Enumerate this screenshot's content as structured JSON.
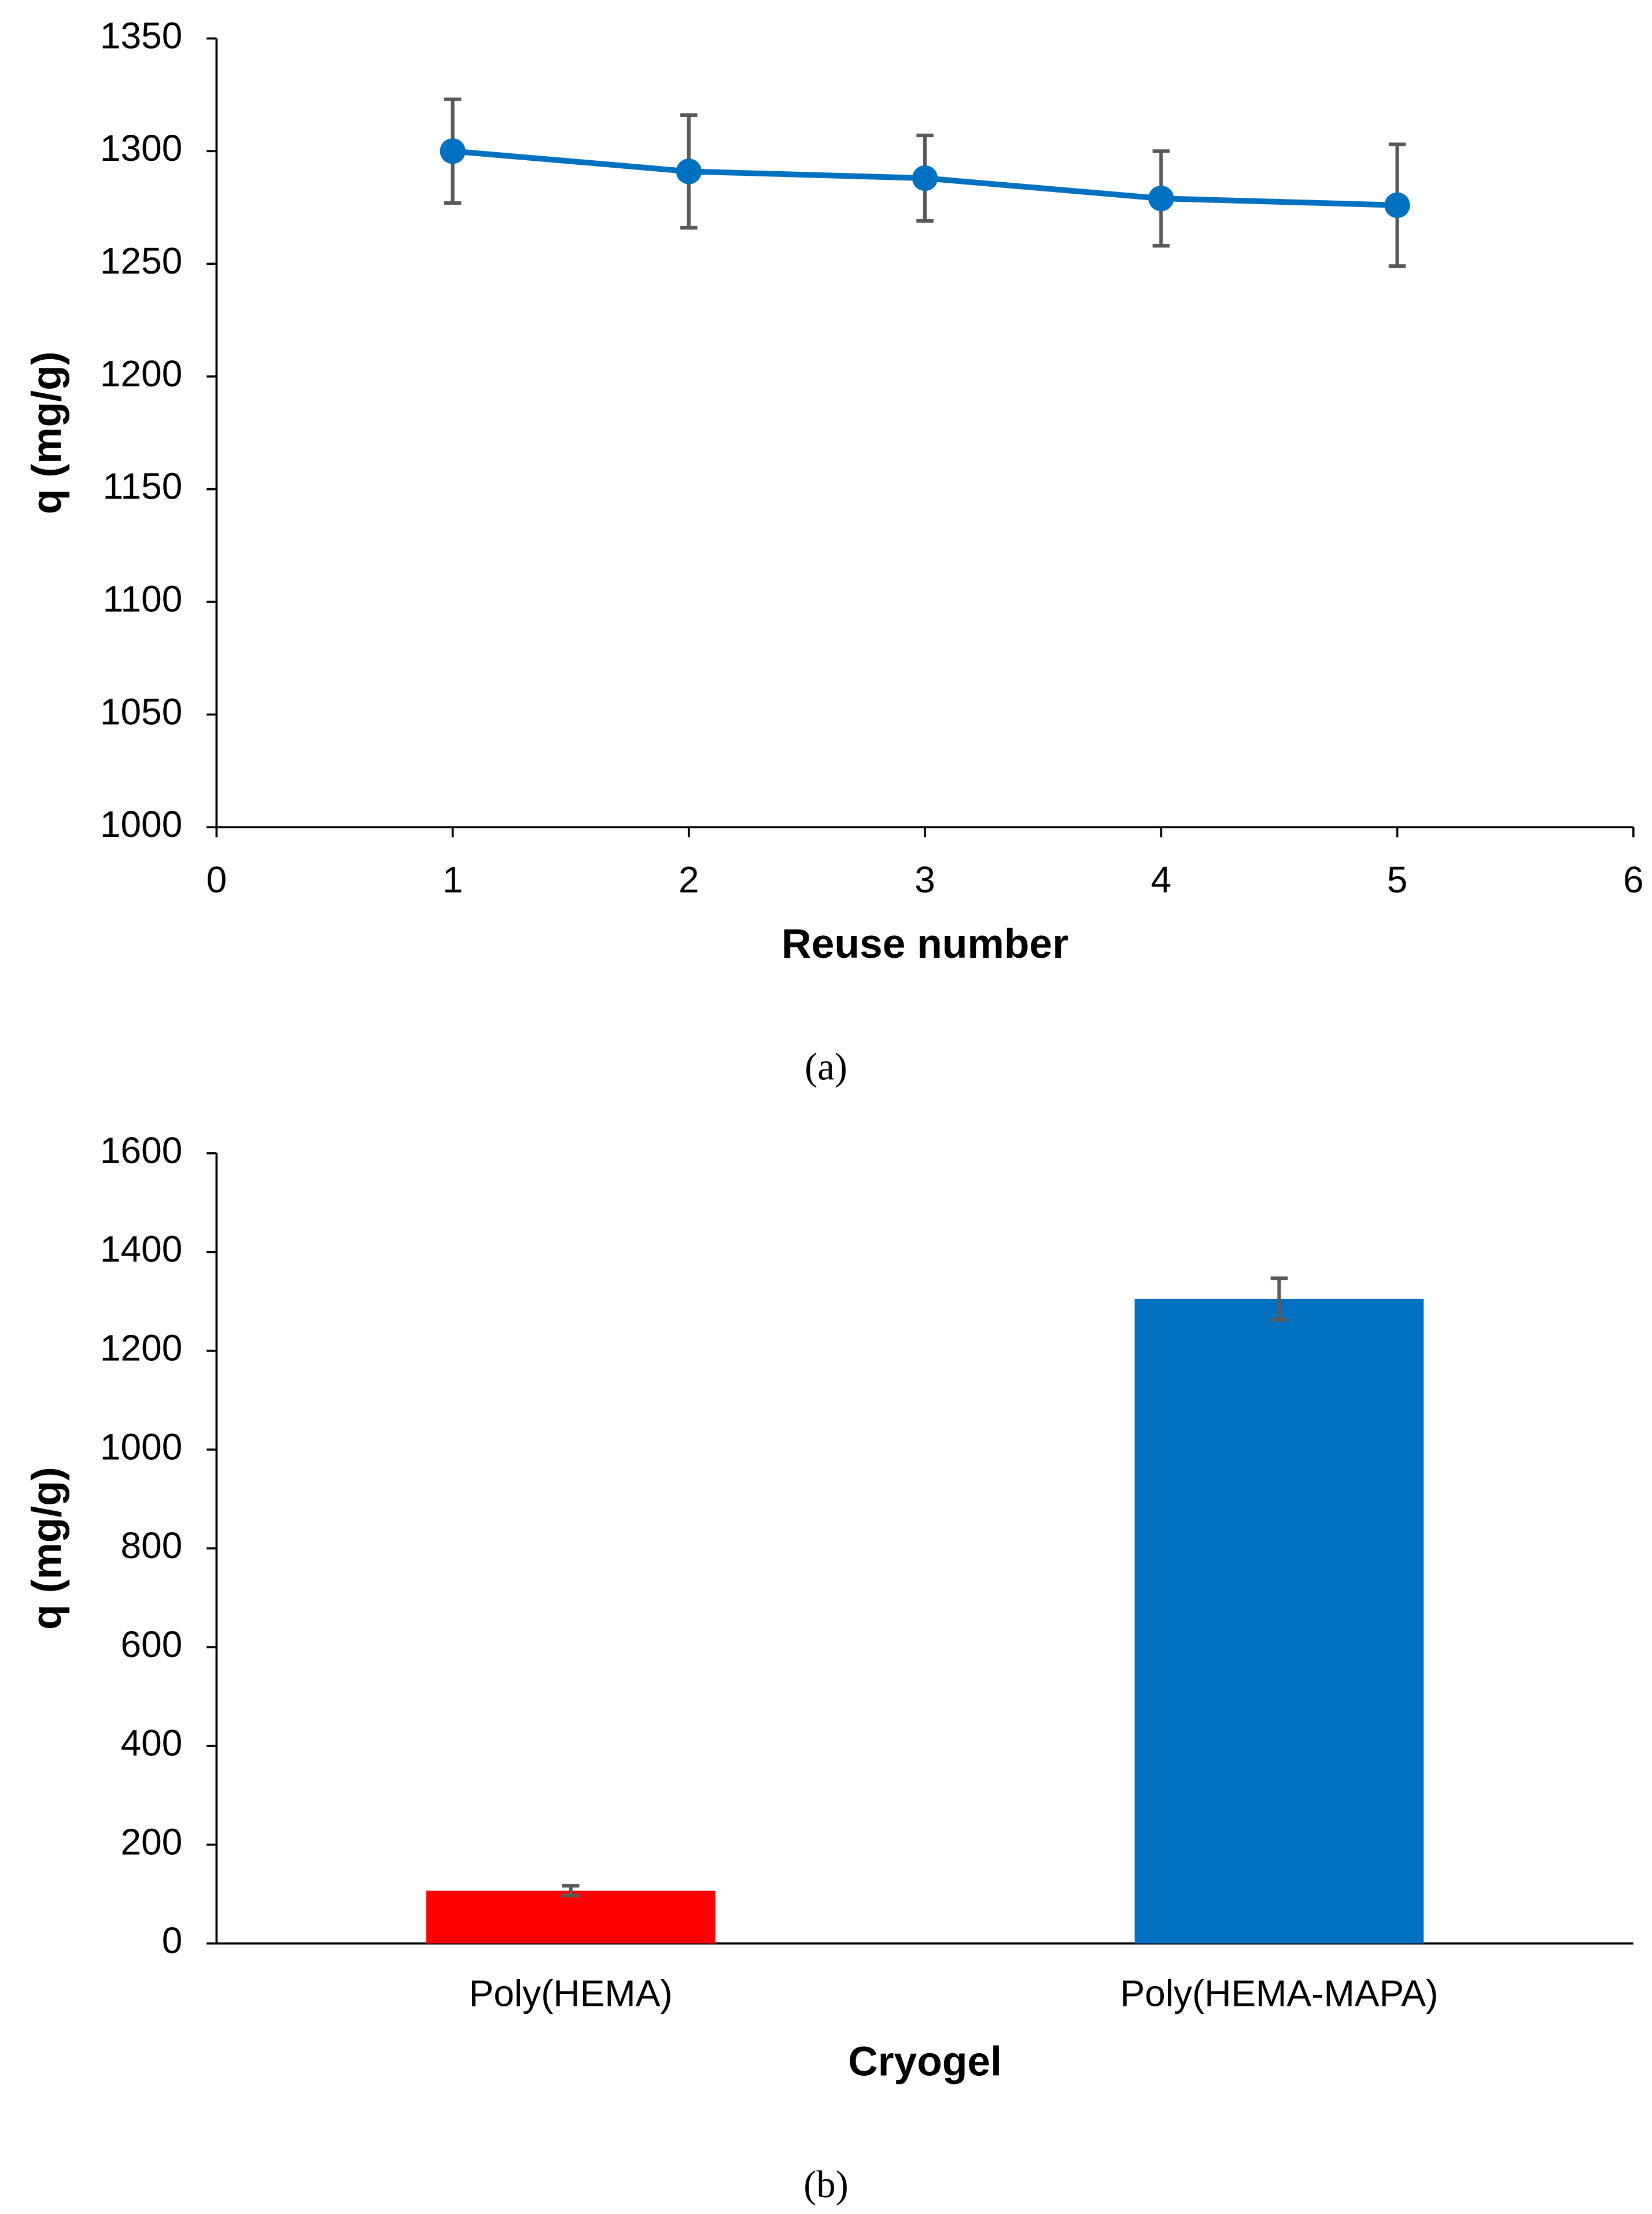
{
  "chart_data": [
    {
      "type": "line",
      "caption": "(a)",
      "x_label": "Reuse number",
      "y_label": "q (mg/g)",
      "x": [
        1,
        2,
        3,
        4,
        5
      ],
      "values": [
        1300,
        1291,
        1288,
        1279,
        1276
      ],
      "errors": [
        23,
        25,
        19,
        21,
        27
      ],
      "color": "#0070c0",
      "error_color": "#595959",
      "xlim": [
        0,
        6
      ],
      "xticks": [
        0,
        1,
        2,
        3,
        4,
        5,
        6
      ],
      "ylim": [
        1000,
        1350
      ],
      "yticks": [
        1000,
        1050,
        1100,
        1150,
        1200,
        1250,
        1300,
        1350
      ]
    },
    {
      "type": "bar",
      "caption": "(b)",
      "x_label": "Cryogel",
      "y_label": "q (mg/g)",
      "categories": [
        "Poly(HEMA)",
        "Poly(HEMA-MAPA)"
      ],
      "values": [
        107,
        1305
      ],
      "errors": [
        10,
        42
      ],
      "colors": [
        "#ff0000",
        "#0070c0"
      ],
      "error_color": "#595959",
      "ylim": [
        0,
        1600
      ],
      "yticks": [
        0,
        200,
        400,
        600,
        800,
        1000,
        1200,
        1400,
        1600
      ]
    }
  ]
}
